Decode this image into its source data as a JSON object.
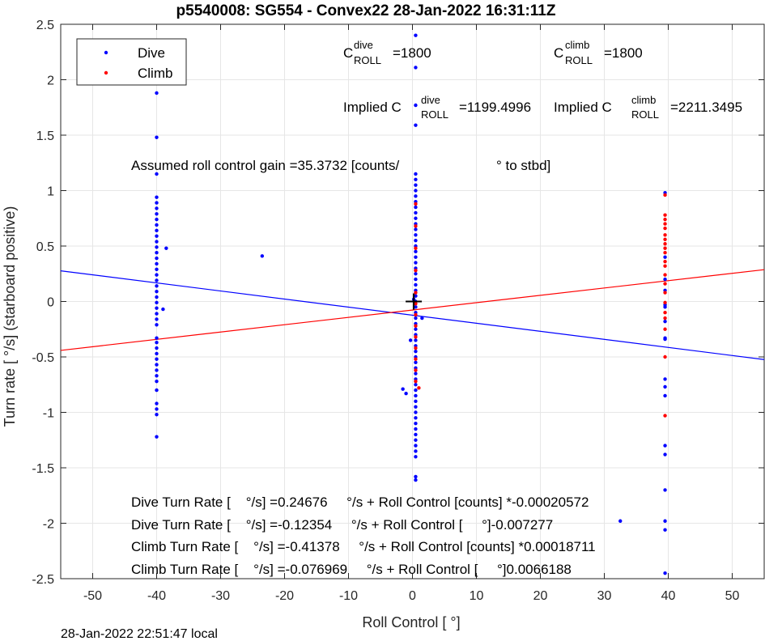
{
  "chart_data": {
    "type": "scatter",
    "title": "p5540008: SG554 - Convex22 28-Jan-2022 16:31:11Z",
    "xlabel": "Roll Control [   °]",
    "ylabel": "Turn rate [   °/s] (starboard positive)",
    "xlim": [
      -55,
      55
    ],
    "ylim": [
      -2.5,
      2.5
    ],
    "xticks": [
      "-50",
      "-40",
      "-30",
      "-20",
      "-10",
      "0",
      "10",
      "20",
      "30",
      "40",
      "50"
    ],
    "yticks": [
      "-2.5",
      "-2",
      "-1.5",
      "-1",
      "-0.5",
      "0",
      "0.5",
      "1",
      "1.5",
      "2",
      "2.5"
    ],
    "grid": true,
    "legend_position": "top-left",
    "colors": {
      "dive": "#0000ff",
      "climb": "#ff0000",
      "center_marker": "#000000"
    },
    "series": [
      {
        "name": "Dive",
        "marker": "dot",
        "points": [
          [
            -40,
            1.88
          ],
          [
            -40,
            1.48
          ],
          [
            -40,
            1.15
          ],
          [
            -40,
            0.94
          ],
          [
            -40,
            0.89
          ],
          [
            -40,
            0.84
          ],
          [
            -40,
            0.79
          ],
          [
            -40,
            0.74
          ],
          [
            -40,
            0.69
          ],
          [
            -40,
            0.64
          ],
          [
            -40,
            0.59
          ],
          [
            -40,
            0.54
          ],
          [
            -40,
            0.49
          ],
          [
            -40,
            0.44
          ],
          [
            -40,
            0.39
          ],
          [
            -40,
            0.34
          ],
          [
            -40,
            0.29
          ],
          [
            -40,
            0.24
          ],
          [
            -40,
            0.19
          ],
          [
            -40,
            0.14
          ],
          [
            -40,
            0.09
          ],
          [
            -40,
            0.04
          ],
          [
            -40,
            -0.01
          ],
          [
            -40,
            -0.06
          ],
          [
            -40,
            -0.11
          ],
          [
            -40,
            -0.16
          ],
          [
            -40,
            -0.21
          ],
          [
            -40,
            -0.33
          ],
          [
            -40,
            -0.37
          ],
          [
            -40,
            -0.42
          ],
          [
            -40,
            -0.47
          ],
          [
            -40,
            -0.52
          ],
          [
            -40,
            -0.57
          ],
          [
            -40,
            -0.62
          ],
          [
            -40,
            -0.67
          ],
          [
            -40,
            -0.72
          ],
          [
            -40,
            -0.8
          ],
          [
            -40,
            -0.92
          ],
          [
            -40,
            -0.97
          ],
          [
            -40,
            -1.02
          ],
          [
            -40,
            -1.22
          ],
          [
            -38.5,
            0.48
          ],
          [
            -39,
            -0.07
          ],
          [
            -23.5,
            0.41
          ],
          [
            0.5,
            2.4
          ],
          [
            0.5,
            2.11
          ],
          [
            0.5,
            1.77
          ],
          [
            0.5,
            1.59
          ],
          [
            0.5,
            1.15
          ],
          [
            0.5,
            1.1
          ],
          [
            0.5,
            1.05
          ],
          [
            0.5,
            1.0
          ],
          [
            0.5,
            0.95
          ],
          [
            0.5,
            0.9
          ],
          [
            0.5,
            0.85
          ],
          [
            0.5,
            0.8
          ],
          [
            0.5,
            0.75
          ],
          [
            0.5,
            0.7
          ],
          [
            0.5,
            0.65
          ],
          [
            0.5,
            0.6
          ],
          [
            0.5,
            0.55
          ],
          [
            0.5,
            0.5
          ],
          [
            0.5,
            0.45
          ],
          [
            0.5,
            0.4
          ],
          [
            0.5,
            0.35
          ],
          [
            0.5,
            0.3
          ],
          [
            0.5,
            0.25
          ],
          [
            0.5,
            0.2
          ],
          [
            0.5,
            0.15
          ],
          [
            0.5,
            0.1
          ],
          [
            0.5,
            0.05
          ],
          [
            0.5,
            0.0
          ],
          [
            0.5,
            -0.05
          ],
          [
            0.5,
            -0.1
          ],
          [
            0.5,
            -0.15
          ],
          [
            0.5,
            -0.2
          ],
          [
            0.5,
            -0.25
          ],
          [
            0.5,
            -0.3
          ],
          [
            0.5,
            -0.35
          ],
          [
            0.5,
            -0.4
          ],
          [
            0.5,
            -0.45
          ],
          [
            0.5,
            -0.5
          ],
          [
            0.5,
            -0.55
          ],
          [
            0.5,
            -0.6
          ],
          [
            0.5,
            -0.65
          ],
          [
            0.5,
            -0.7
          ],
          [
            0.5,
            -0.75
          ],
          [
            0.5,
            -0.8
          ],
          [
            0.5,
            -0.85
          ],
          [
            0.5,
            -0.9
          ],
          [
            0.5,
            -0.95
          ],
          [
            0.5,
            -1.0
          ],
          [
            0.5,
            -1.05
          ],
          [
            0.5,
            -1.1
          ],
          [
            0.5,
            -1.15
          ],
          [
            0.5,
            -1.2
          ],
          [
            0.5,
            -1.25
          ],
          [
            0.5,
            -1.3
          ],
          [
            0.5,
            -1.35
          ],
          [
            0.5,
            -1.4
          ],
          [
            0.5,
            -1.58
          ],
          [
            0.5,
            -1.61
          ],
          [
            -1.5,
            -0.79
          ],
          [
            -1,
            -0.83
          ],
          [
            1.5,
            -0.15
          ],
          [
            -0.3,
            -0.35
          ],
          [
            0.2,
            0.02
          ],
          [
            32.5,
            -1.98
          ],
          [
            39.5,
            0.98
          ],
          [
            39.5,
            0.4
          ],
          [
            39.5,
            0.2
          ],
          [
            39.5,
            0.1
          ],
          [
            39.5,
            -0.03
          ],
          [
            39.5,
            -0.05
          ],
          [
            39.5,
            -0.18
          ],
          [
            39.5,
            -0.33
          ],
          [
            39.5,
            -0.34
          ],
          [
            39.5,
            -0.7
          ],
          [
            39.5,
            -0.77
          ],
          [
            39.5,
            -0.85
          ],
          [
            39.5,
            -1.3
          ],
          [
            39.5,
            -1.38
          ],
          [
            39.5,
            -1.7
          ],
          [
            39.5,
            -1.98
          ],
          [
            39.5,
            -2.06
          ],
          [
            39.5,
            -2.45
          ]
        ]
      },
      {
        "name": "Climb",
        "marker": "dot",
        "points": [
          [
            39.5,
            0.96
          ],
          [
            39.5,
            0.78
          ],
          [
            39.5,
            0.74
          ],
          [
            39.5,
            0.7
          ],
          [
            39.5,
            0.66
          ],
          [
            39.5,
            0.6
          ],
          [
            39.5,
            0.56
          ],
          [
            39.5,
            0.52
          ],
          [
            39.5,
            0.48
          ],
          [
            39.5,
            0.44
          ],
          [
            39.5,
            0.36
          ],
          [
            39.5,
            0.32
          ],
          [
            39.5,
            0.24
          ],
          [
            39.5,
            0.16
          ],
          [
            39.5,
            0.08
          ],
          [
            39.5,
            -0.01
          ],
          [
            39.5,
            -0.1
          ],
          [
            39.5,
            -0.15
          ],
          [
            39.5,
            -0.25
          ],
          [
            39.5,
            -0.5
          ],
          [
            39.5,
            -1.03
          ],
          [
            0.5,
            0.88
          ],
          [
            0.5,
            0.68
          ],
          [
            0.5,
            0.48
          ],
          [
            0.5,
            0.28
          ],
          [
            0.5,
            0.08
          ],
          [
            0.5,
            -0.02
          ],
          [
            0.5,
            -0.12
          ],
          [
            0.5,
            -0.22
          ],
          [
            0.5,
            -0.32
          ],
          [
            0.5,
            -0.42
          ],
          [
            0.5,
            -0.52
          ],
          [
            0.5,
            -0.62
          ],
          [
            0.5,
            -0.72
          ],
          [
            1,
            -0.78
          ]
        ]
      }
    ],
    "fit_lines": [
      {
        "color": "#0000ff",
        "intercept": -0.12354,
        "slope": -0.007277
      },
      {
        "color": "#ff0000",
        "intercept": -0.076969,
        "slope": 0.0066188
      }
    ],
    "center_marker": [
      0.2,
      0.0
    ],
    "annotations": {
      "c_dive_label": "C",
      "c_dive_sup": "dive",
      "c_dive_sub": "ROLL",
      "c_dive_val": "=1800",
      "c_climb_label": "C",
      "c_climb_sup": "climb",
      "c_climb_sub": "ROLL",
      "c_climb_val": "=1800",
      "implied_dive_label": "Implied C",
      "implied_dive_sup": "dive",
      "implied_dive_sub": "ROLL",
      "implied_dive_val": "=1199.4996",
      "implied_climb_label": "Implied C",
      "implied_climb_sup": "climb",
      "implied_climb_sub": "ROLL",
      "implied_climb_val": "=2211.3495",
      "gain_text": "Assumed roll control gain =35.3732 [counts/",
      "gain_unit": "° to stbd]",
      "eq_lines": [
        "Dive Turn Rate [    °/s] =0.24676     °/s + Roll Control [counts] *-0.00020572",
        "Dive Turn Rate [    °/s] =-0.12354     °/s + Roll Control [     °]-0.007277",
        "Climb Turn Rate [    °/s] =-0.41378     °/s + Roll Control [counts] *0.00018711",
        "Climb Turn Rate [    °/s] =-0.076969     °/s + Roll Control [     °]0.0066188"
      ]
    },
    "footer": "28-Jan-2022 22:51:47 local"
  }
}
